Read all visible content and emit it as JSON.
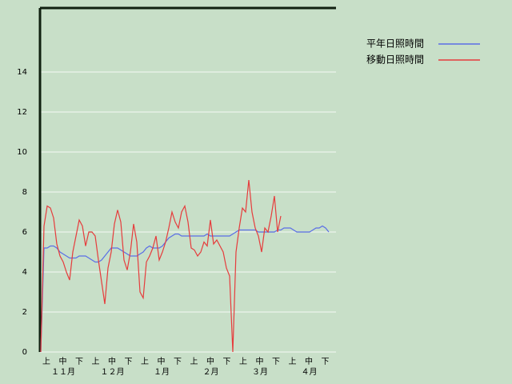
{
  "chart_data": {
    "type": "line",
    "series": [
      {
        "name": "平年日照時間",
        "color": "#5a6ee6",
        "values": [
          0,
          5.2,
          5.2,
          5.3,
          5.3,
          5.2,
          5.0,
          4.9,
          4.8,
          4.7,
          4.7,
          4.7,
          4.8,
          4.8,
          4.8,
          4.7,
          4.6,
          4.5,
          4.5,
          4.6,
          4.8,
          5.0,
          5.2,
          5.2,
          5.2,
          5.1,
          5.0,
          4.9,
          4.8,
          4.8,
          4.8,
          4.9,
          5.0,
          5.2,
          5.3,
          5.2,
          5.2,
          5.2,
          5.3,
          5.5,
          5.7,
          5.8,
          5.9,
          5.9,
          5.8,
          5.8,
          5.8,
          5.8,
          5.8,
          5.8,
          5.8,
          5.8,
          5.9,
          5.8,
          5.8,
          5.8,
          5.8,
          5.8,
          5.8,
          5.8,
          5.9,
          6.0,
          6.1,
          6.1,
          6.1,
          6.1,
          6.1,
          6.1,
          6.0,
          6.0,
          6.0,
          6.0,
          6.0,
          6.0,
          6.1,
          6.1,
          6.2,
          6.2,
          6.2,
          6.1,
          6.0,
          6.0,
          6.0,
          6.0,
          6.0,
          6.1,
          6.2,
          6.2,
          6.3,
          6.2,
          6.0
        ]
      },
      {
        "name": "移動日照時間",
        "color": "#e63c3c",
        "values": [
          0,
          6.3,
          7.3,
          7.2,
          6.7,
          5.4,
          4.8,
          4.5,
          4.0,
          3.6,
          5.0,
          5.8,
          6.6,
          6.3,
          5.3,
          6.0,
          6.0,
          5.8,
          4.6,
          3.5,
          2.4,
          4.2,
          5.0,
          6.4,
          7.1,
          6.5,
          4.6,
          4.1,
          5.0,
          6.4,
          5.5,
          3.0,
          2.7,
          4.5,
          4.8,
          5.2,
          5.8,
          4.6,
          5.0,
          5.5,
          6.2,
          7.0,
          6.5,
          6.2,
          7.0,
          7.3,
          6.5,
          5.2,
          5.1,
          4.8,
          5.0,
          5.5,
          5.3,
          6.6,
          5.4,
          5.6,
          5.3,
          5.0,
          4.2,
          3.8,
          0,
          5.0,
          6.2,
          7.2,
          7.0,
          8.6,
          7.0,
          6.2,
          5.8,
          5.0,
          6.2,
          6.0,
          6.8,
          7.8,
          6.0,
          6.8,
          null,
          null,
          null,
          null,
          null,
          null,
          null,
          null,
          null,
          null,
          null,
          null,
          null,
          null,
          null
        ]
      }
    ],
    "ylim": [
      0,
      17.2
    ],
    "yticks": [
      0,
      2,
      4,
      6,
      8,
      10,
      12,
      14
    ],
    "grid": true,
    "period_labels": [
      "上",
      "中",
      "下",
      "上",
      "中",
      "下",
      "上",
      "中",
      "下",
      "上",
      "中",
      "下",
      "上",
      "中",
      "下",
      "上",
      "中",
      "下"
    ],
    "month_labels": [
      "１１月",
      "１２月",
      "１月",
      "２月",
      "３月",
      "４月"
    ]
  }
}
